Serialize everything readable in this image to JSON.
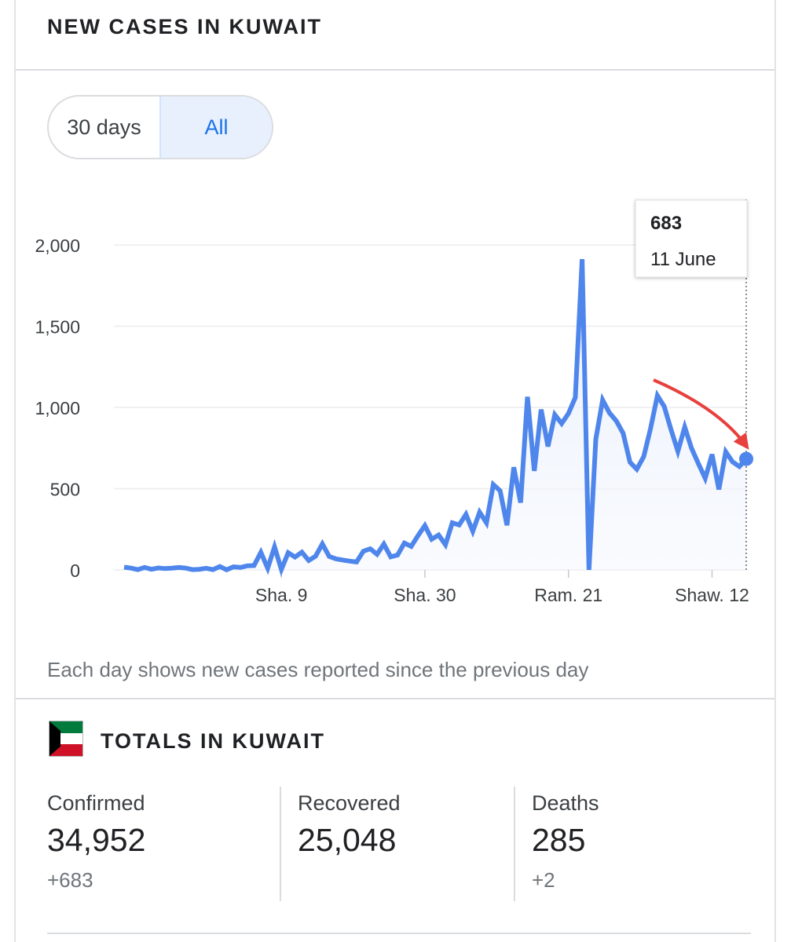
{
  "header": {
    "title": "NEW CASES IN KUWAIT"
  },
  "range_toggle": {
    "options": [
      "30 days",
      "All"
    ],
    "selected": "All"
  },
  "tooltip": {
    "value": "683",
    "date": "11 June"
  },
  "footnote": "Each day shows new cases reported since the previous day",
  "totals": {
    "title": "TOTALS IN KUWAIT",
    "confirmed": {
      "label": "Confirmed",
      "value": "34,952",
      "delta": "+683"
    },
    "recovered": {
      "label": "Recovered",
      "value": "25,048"
    },
    "deaths": {
      "label": "Deaths",
      "value": "285",
      "delta": "+2"
    }
  },
  "colors": {
    "line": "#4f86ec",
    "arrow": "#e8403d",
    "grid": "#ececee",
    "axis_text": "#3c4043"
  },
  "chart_data": {
    "type": "line",
    "title": "",
    "xlabel": "",
    "ylabel": "",
    "ylim": [
      0,
      2000
    ],
    "y_ticks": [
      0,
      500,
      1000,
      1500,
      2000
    ],
    "y_tick_labels": [
      "0",
      "500",
      "1,000",
      "1,500",
      "2,000"
    ],
    "x_tick_labels": [
      "Sha. 9",
      "Sha. 30",
      "Ram. 21",
      "Shaw. 12"
    ],
    "x_tick_index": [
      23,
      44,
      65,
      86
    ],
    "grid": true,
    "legend": "none",
    "series": [
      {
        "values": [
          17,
          11,
          2,
          15,
          4,
          12,
          8,
          11,
          15,
          11,
          2,
          4,
          10,
          2,
          21,
          1,
          19,
          15,
          25,
          27,
          108,
          10,
          142,
          3,
          106,
          79,
          109,
          58,
          84,
          160,
          83,
          68,
          61,
          54,
          49,
          115,
          130,
          96,
          159,
          80,
          92,
          165,
          145,
          211,
          273,
          189,
          215,
          155,
          290,
          277,
          342,
          238,
          355,
          290,
          525,
          487,
          275,
          632,
          414,
          1065,
          609,
          987,
          760,
          955,
          901,
          963,
          1061,
          1912,
          0,
          805,
          1046,
          966,
          917,
          841,
          663,
          620,
          697,
          870,
          1073,
          1006,
          863,
          730,
          879,
          749,
          654,
          564,
          711,
          495,
          727,
          665,
          636,
          683
        ]
      }
    ],
    "highlight_index": 91,
    "annotation": "arrow pointing to latest value"
  }
}
